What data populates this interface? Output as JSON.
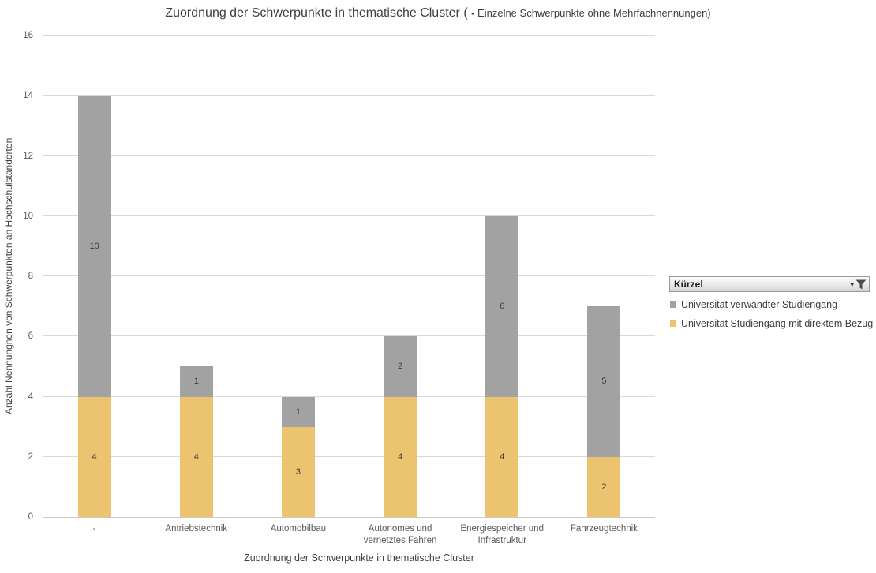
{
  "title": {
    "main": "Zuordnung der Schwerpunkte in thematische Cluster ( ",
    "dash": "-",
    "sub": " Einzelne Schwerpunkte ohne Mehrfachnennungen)"
  },
  "axes": {
    "y_label": "Anzahl Nennungnen von Schwerpunkten an Hochschulstandorten",
    "x_label": "Zuordnung der Schwerpunkte in thematische Cluster",
    "yticks": [
      0,
      2,
      4,
      6,
      8,
      10,
      12,
      14,
      16
    ]
  },
  "legend": {
    "filter_button": {
      "label": "Kürzel",
      "dropdown_glyph": "▾"
    },
    "items": [
      {
        "label": "Universität verwandter Studiengang",
        "color": "#a2a2a2"
      },
      {
        "label": "Universität Studiengang mit direktem Bezug",
        "color": "#ecc36e"
      }
    ]
  },
  "chart_data": {
    "type": "bar",
    "stacked": true,
    "title": "Zuordnung der Schwerpunkte in thematische Cluster ( - Einzelne Schwerpunkte ohne Mehrfachnennungen)",
    "xlabel": "Zuordnung der Schwerpunkte in thematische Cluster",
    "ylabel": "Anzahl Nennungnen von Schwerpunkten an Hochschulstandorten",
    "categories": [
      "-",
      "Antriebstechnik",
      "Automobilbau",
      "Autonomes und\nvernetztes Fahren",
      "Energiespeicher und\nInfrastruktur",
      "Fahrzeugtechnik"
    ],
    "series": [
      {
        "name": "Universität Studiengang mit direktem Bezug",
        "color": "#ecc36e",
        "values": [
          4,
          4,
          3,
          4,
          4,
          2
        ]
      },
      {
        "name": "Universität verwandter Studiengang",
        "color": "#a2a2a2",
        "values": [
          10,
          1,
          1,
          2,
          6,
          5
        ]
      }
    ],
    "totals": [
      14,
      5,
      4,
      6,
      10,
      7
    ],
    "ylim": [
      0,
      16
    ],
    "ytick_step": 2,
    "grid": true,
    "data_labels": true,
    "legend_position": "right"
  }
}
